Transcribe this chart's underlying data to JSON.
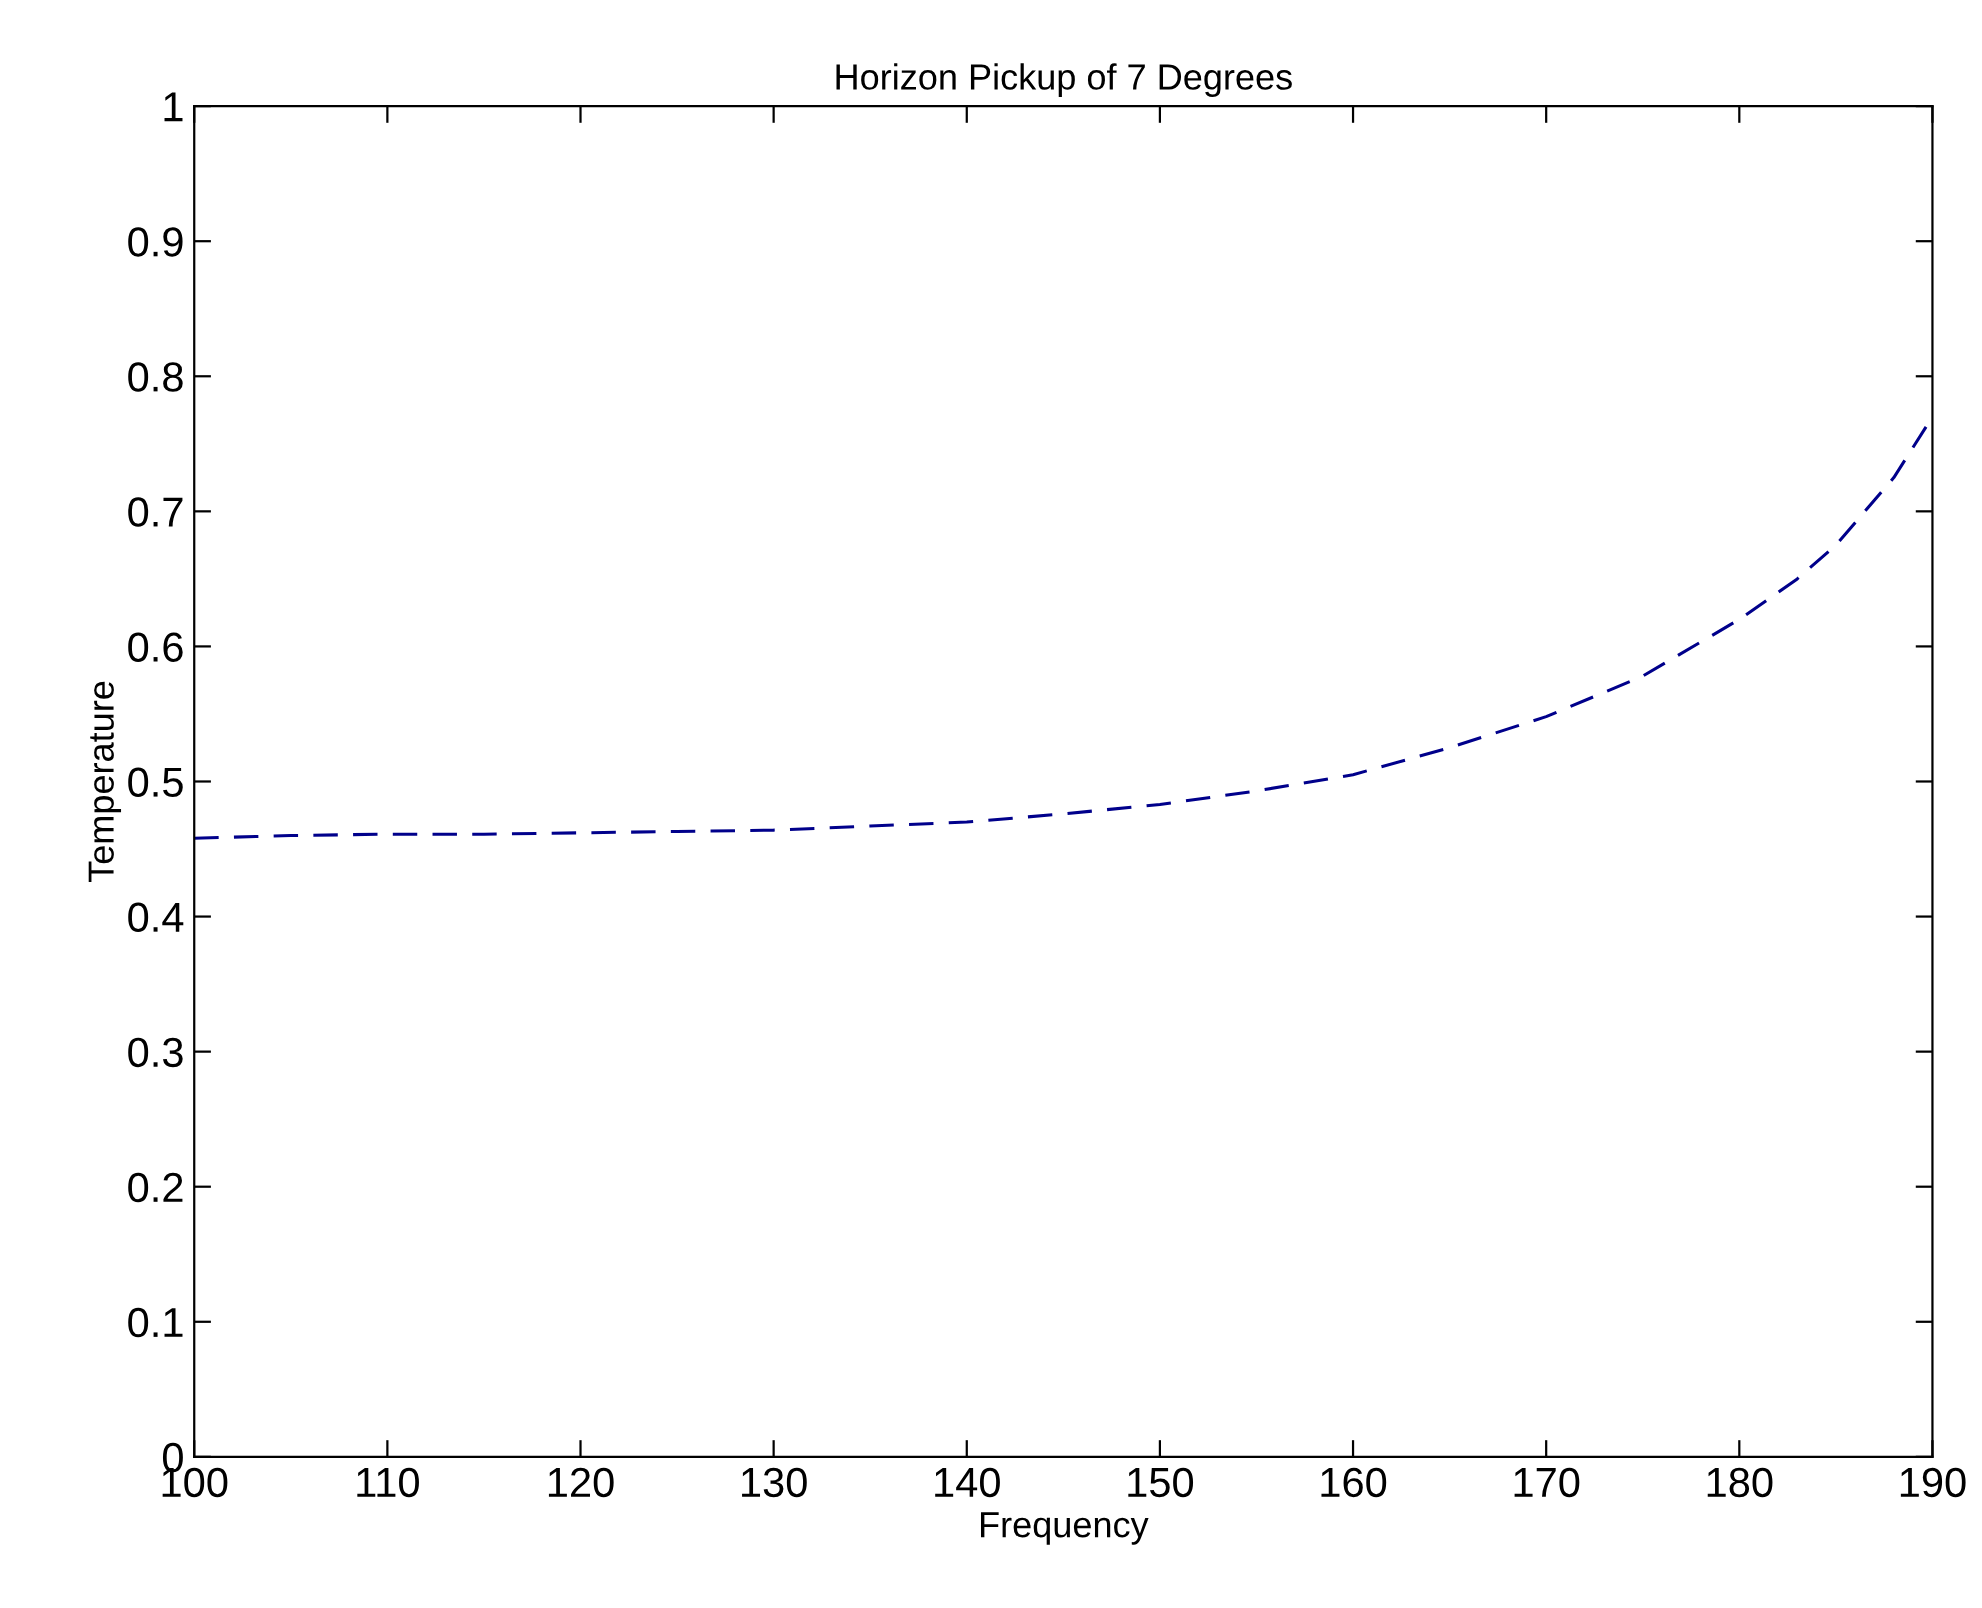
{
  "chart_data": {
    "type": "line",
    "title": "Horizon Pickup of 7 Degrees",
    "xlabel": "Frequency",
    "ylabel": "Temperature",
    "x": [
      100,
      105,
      110,
      115,
      120,
      125,
      130,
      135,
      140,
      145,
      150,
      155,
      160,
      165,
      170,
      175,
      180,
      183,
      185,
      188,
      190
    ],
    "series": [
      {
        "color": "#00008b",
        "values": [
          0.458,
          0.46,
          0.461,
          0.461,
          0.462,
          0.463,
          0.464,
          0.467,
          0.47,
          0.476,
          0.483,
          0.493,
          0.505,
          0.525,
          0.548,
          0.578,
          0.62,
          0.65,
          0.675,
          0.725,
          0.77
        ]
      }
    ],
    "xlim": [
      100,
      190
    ],
    "ylim": [
      0,
      1
    ],
    "xticks": [
      100,
      110,
      120,
      130,
      140,
      150,
      160,
      170,
      180,
      190
    ],
    "yticks": [
      0,
      0.1,
      0.2,
      0.3,
      0.4,
      0.5,
      0.6,
      0.7,
      0.8,
      0.9,
      1
    ],
    "grid": false,
    "marker": "none",
    "line_style": "dashed"
  }
}
